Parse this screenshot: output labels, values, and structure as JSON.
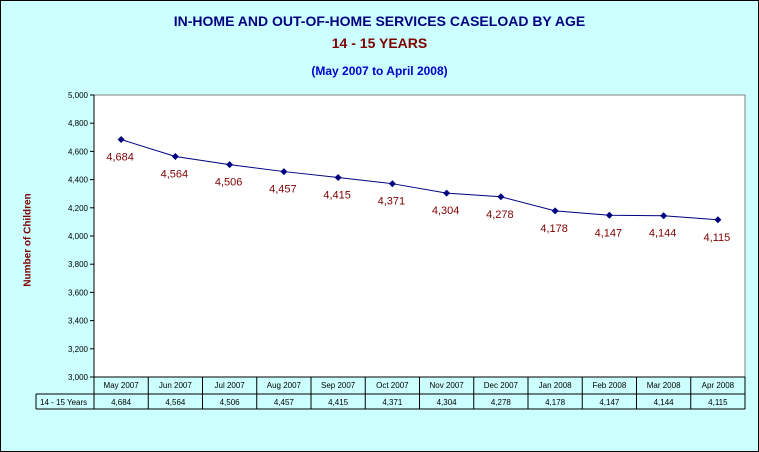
{
  "chart_data": {
    "type": "line",
    "title": "IN-HOME AND OUT-OF-HOME SERVICES CASELOAD BY AGE",
    "subtitle": "14 - 15 YEARS",
    "date_range": "(May 2007 to April 2008)",
    "ylabel": "Number of Children",
    "xlabel": "",
    "ylim": [
      3000,
      5000
    ],
    "ytick_step": 200,
    "yticks": [
      "3,000",
      "3,200",
      "3,400",
      "3,600",
      "3,800",
      "4,000",
      "4,200",
      "4,400",
      "4,600",
      "4,800",
      "5,000"
    ],
    "grid": false,
    "categories": [
      "May 2007",
      "Jun 2007",
      "Jul 2007",
      "Aug 2007",
      "Sep 2007",
      "Oct 2007",
      "Nov 2007",
      "Dec 2007",
      "Jan 2008",
      "Feb 2008",
      "Mar 2008",
      "Apr 2008"
    ],
    "series": [
      {
        "name": "14 - 15 Years",
        "values": [
          4684,
          4564,
          4506,
          4457,
          4415,
          4371,
          4304,
          4278,
          4178,
          4147,
          4144,
          4115
        ],
        "labels": [
          "4,684",
          "4,564",
          "4,506",
          "4,457",
          "4,415",
          "4,371",
          "4,304",
          "4,278",
          "4,178",
          "4,147",
          "4,144",
          "4,115"
        ],
        "color": "#000080"
      }
    ],
    "data_label_color": "#800000",
    "data_table": true
  },
  "colors": {
    "background": "#ccffff",
    "plot_background": "#ffffff",
    "title": "#000080",
    "subtitle": "#800000",
    "date_range": "#0000cc"
  }
}
